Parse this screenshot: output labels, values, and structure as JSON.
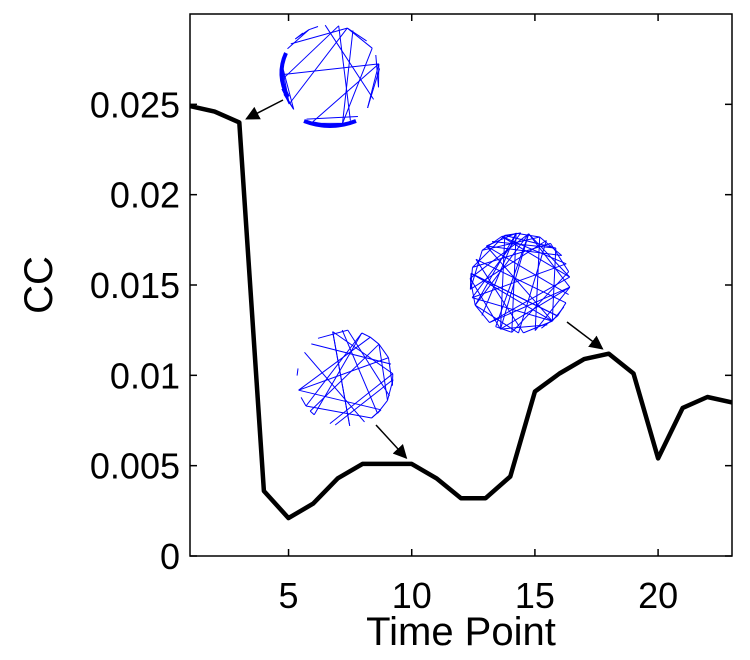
{
  "chart_data": {
    "type": "line",
    "xlabel": "Time Point",
    "ylabel": "CC",
    "xlim": [
      1,
      23
    ],
    "ylim": [
      0,
      0.03
    ],
    "xticks": [
      5,
      10,
      15,
      20
    ],
    "xtick_labels": [
      "5",
      "10",
      "15",
      "20"
    ],
    "yticks": [
      0,
      0.005,
      0.01,
      0.015,
      0.02,
      0.025
    ],
    "ytick_labels": [
      "0",
      "0.005",
      "0.01",
      "0.015",
      "0.02",
      "0.025"
    ],
    "grid": false,
    "legend": "none",
    "series": [
      {
        "color": "#000000",
        "x": [
          1,
          2,
          3,
          4,
          5,
          6,
          7,
          8,
          9,
          10,
          11,
          12,
          13,
          14,
          15,
          16,
          17,
          18,
          19,
          20,
          21,
          22,
          23
        ],
        "y": [
          0.0249,
          0.0246,
          0.024,
          0.0036,
          0.0021,
          0.0029,
          0.0043,
          0.0051,
          0.0051,
          0.0051,
          0.0043,
          0.0032,
          0.0032,
          0.0044,
          0.0091,
          0.0101,
          0.0109,
          0.0112,
          0.0101,
          0.0054,
          0.0082,
          0.0088,
          0.0085
        ]
      }
    ],
    "annotations": [
      {
        "type": "network-graph-inset",
        "points_to": {
          "x": 3,
          "y": 0.024
        },
        "color": "#0000ff"
      },
      {
        "type": "network-graph-inset",
        "points_to": {
          "x": 10,
          "y": 0.0051
        },
        "color": "#0000ff"
      },
      {
        "type": "network-graph-inset",
        "points_to": {
          "x": 18,
          "y": 0.0112
        },
        "color": "#0000ff"
      }
    ]
  }
}
